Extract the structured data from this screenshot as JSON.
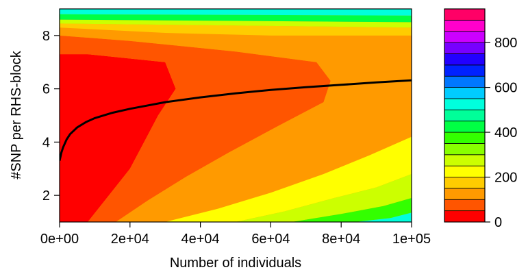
{
  "chart_data": {
    "type": "heatmap",
    "subtype": "filled-contour",
    "xlabel": "Number of individuals",
    "ylabel": "#SNP per RHS-block",
    "xlim": [
      0,
      100000
    ],
    "ylim": [
      1,
      9
    ],
    "x_ticks": [
      0,
      20000,
      40000,
      60000,
      80000,
      100000
    ],
    "x_tick_labels": [
      "0e+00",
      "2e+04",
      "4e+04",
      "6e+04",
      "8e+04",
      "1e+05"
    ],
    "y_ticks": [
      2,
      4,
      6,
      8
    ],
    "y_tick_labels": [
      "2",
      "4",
      "6",
      "8"
    ],
    "colorbar": {
      "range": [
        0,
        950
      ],
      "ticks": [
        0,
        200,
        400,
        600,
        800
      ],
      "tick_labels": [
        "0",
        "200",
        "400",
        "600",
        "800"
      ],
      "levels": [
        {
          "from": 0,
          "to": 50,
          "color": "#ff0000"
        },
        {
          "from": 50,
          "to": 100,
          "color": "#ff5500"
        },
        {
          "from": 100,
          "to": 150,
          "color": "#ff9a00"
        },
        {
          "from": 150,
          "to": 200,
          "color": "#ffcc00"
        },
        {
          "from": 200,
          "to": 250,
          "color": "#ffff00"
        },
        {
          "from": 250,
          "to": 300,
          "color": "#ccff00"
        },
        {
          "from": 300,
          "to": 350,
          "color": "#88ff00"
        },
        {
          "from": 350,
          "to": 400,
          "color": "#33ff00"
        },
        {
          "from": 400,
          "to": 450,
          "color": "#00ff44"
        },
        {
          "from": 450,
          "to": 500,
          "color": "#00ff99"
        },
        {
          "from": 500,
          "to": 550,
          "color": "#00ffdd"
        },
        {
          "from": 550,
          "to": 600,
          "color": "#00ccff"
        },
        {
          "from": 600,
          "to": 650,
          "color": "#0077ff"
        },
        {
          "from": 650,
          "to": 700,
          "color": "#0022ff"
        },
        {
          "from": 700,
          "to": 750,
          "color": "#2200ff"
        },
        {
          "from": 750,
          "to": 800,
          "color": "#7700ff"
        },
        {
          "from": 800,
          "to": 850,
          "color": "#cc00ff"
        },
        {
          "from": 850,
          "to": 900,
          "color": "#ff00cc"
        },
        {
          "from": 900,
          "to": 950,
          "color": "#ff0066"
        }
      ]
    },
    "contour_regions": [
      {
        "level_index": 0,
        "boundary": [
          [
            0,
            1
          ],
          [
            8000,
            1
          ],
          [
            14000,
            2
          ],
          [
            20000,
            3
          ],
          [
            24000,
            4
          ],
          [
            28000,
            5
          ],
          [
            33000,
            6
          ],
          [
            30000,
            7
          ],
          [
            8000,
            7.3
          ],
          [
            0,
            7.3
          ]
        ]
      },
      {
        "level_index": 1,
        "boundary": [
          [
            8000,
            1
          ],
          [
            16000,
            1
          ],
          [
            25000,
            1.8
          ],
          [
            36000,
            2.7
          ],
          [
            48000,
            3.6
          ],
          [
            62000,
            4.6
          ],
          [
            75000,
            5.5
          ],
          [
            77000,
            6.3
          ],
          [
            73000,
            7
          ],
          [
            50000,
            7.4
          ],
          [
            20000,
            7.8
          ],
          [
            0,
            8
          ],
          [
            0,
            7.3
          ],
          [
            8000,
            7.3
          ],
          [
            30000,
            7
          ],
          [
            33000,
            6
          ],
          [
            28000,
            5
          ],
          [
            24000,
            4
          ],
          [
            20000,
            3
          ],
          [
            14000,
            2
          ]
        ]
      },
      {
        "level_index": 2,
        "boundary": [
          [
            16000,
            1
          ],
          [
            30000,
            1
          ],
          [
            45000,
            1.5
          ],
          [
            60000,
            2.1
          ],
          [
            75000,
            2.8
          ],
          [
            88000,
            3.5
          ],
          [
            100000,
            4.2
          ],
          [
            100000,
            8
          ],
          [
            60000,
            8
          ],
          [
            30000,
            8.1
          ],
          [
            0,
            8.3
          ],
          [
            0,
            8
          ],
          [
            20000,
            7.8
          ],
          [
            50000,
            7.4
          ],
          [
            73000,
            7
          ],
          [
            77000,
            6.3
          ],
          [
            75000,
            5.5
          ],
          [
            62000,
            4.6
          ],
          [
            48000,
            3.6
          ],
          [
            36000,
            2.7
          ],
          [
            25000,
            1.8
          ]
        ]
      },
      {
        "level_index": 4,
        "boundary": [
          [
            30000,
            1
          ],
          [
            50000,
            1
          ],
          [
            64000,
            1.4
          ],
          [
            78000,
            1.9
          ],
          [
            90000,
            2.3
          ],
          [
            100000,
            2.8
          ],
          [
            100000,
            4.2
          ],
          [
            88000,
            3.5
          ],
          [
            75000,
            2.8
          ],
          [
            60000,
            2.1
          ],
          [
            45000,
            1.5
          ]
        ]
      },
      {
        "level_index": 5,
        "boundary": [
          [
            50000,
            1
          ],
          [
            66000,
            1
          ],
          [
            80000,
            1.3
          ],
          [
            92000,
            1.6
          ],
          [
            100000,
            1.9
          ],
          [
            100000,
            2.8
          ],
          [
            90000,
            2.3
          ],
          [
            78000,
            1.9
          ],
          [
            64000,
            1.4
          ]
        ]
      },
      {
        "level_index": 7,
        "boundary": [
          [
            66000,
            1
          ],
          [
            84000,
            1
          ],
          [
            94000,
            1.15
          ],
          [
            100000,
            1.35
          ],
          [
            100000,
            1.9
          ],
          [
            92000,
            1.6
          ],
          [
            80000,
            1.3
          ]
        ]
      },
      {
        "level_index": 10,
        "boundary": [
          [
            84000,
            1
          ],
          [
            100000,
            1
          ],
          [
            100000,
            1.35
          ],
          [
            94000,
            1.15
          ]
        ]
      },
      {
        "level_index": 3,
        "boundary": [
          [
            0,
            8.3
          ],
          [
            30000,
            8.1
          ],
          [
            60000,
            8
          ],
          [
            100000,
            8
          ],
          [
            100000,
            8.3
          ],
          [
            0,
            8.45
          ]
        ]
      },
      {
        "level_index": 5,
        "boundary": [
          [
            0,
            8.45
          ],
          [
            100000,
            8.3
          ],
          [
            100000,
            8.5
          ],
          [
            0,
            8.6
          ]
        ]
      },
      {
        "level_index": 8,
        "boundary": [
          [
            0,
            8.6
          ],
          [
            100000,
            8.5
          ],
          [
            100000,
            8.75
          ],
          [
            0,
            8.8
          ]
        ]
      },
      {
        "level_index": 10,
        "boundary": [
          [
            0,
            8.8
          ],
          [
            100000,
            8.75
          ],
          [
            100000,
            9
          ],
          [
            0,
            9
          ]
        ]
      }
    ],
    "curve": {
      "color": "#000000",
      "x": [
        0,
        500,
        1000,
        2000,
        3000,
        5000,
        7500,
        10000,
        15000,
        20000,
        30000,
        40000,
        50000,
        60000,
        70000,
        80000,
        90000,
        100000
      ],
      "y": [
        3.3,
        3.6,
        3.8,
        4.1,
        4.3,
        4.55,
        4.75,
        4.9,
        5.1,
        5.25,
        5.5,
        5.68,
        5.83,
        5.96,
        6.06,
        6.15,
        6.24,
        6.32
      ]
    }
  }
}
